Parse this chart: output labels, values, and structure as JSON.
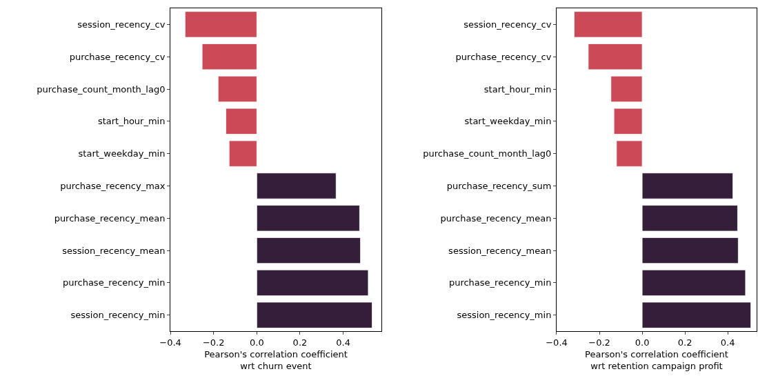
{
  "chart_data": [
    {
      "type": "bar",
      "orientation": "horizontal",
      "xlabel": "Pearson's correlation coefficient\nwrt churn event",
      "categories": [
        "session_recency_cv",
        "purchase_recency_cv",
        "purchase_count_month_lag0",
        "start_hour_min",
        "start_weekday_min",
        "purchase_recency_max",
        "purchase_recency_mean",
        "session_recency_mean",
        "purchase_recency_min",
        "session_recency_min"
      ],
      "values": [
        -0.332,
        -0.253,
        -0.179,
        -0.143,
        -0.128,
        0.367,
        0.476,
        0.48,
        0.516,
        0.534
      ],
      "colors": [
        "#cc4a57",
        "#cc4a57",
        "#cc4a57",
        "#cc4a57",
        "#cc4a57",
        "#341e3a",
        "#341e3a",
        "#341e3a",
        "#341e3a",
        "#341e3a"
      ],
      "xlim": [
        -0.4,
        0.577
      ],
      "xticks": [
        {
          "value": -0.4,
          "label": "−0.4"
        },
        {
          "value": -0.2,
          "label": "−0.2"
        },
        {
          "value": 0,
          "label": "0.0"
        },
        {
          "value": 0.2,
          "label": "0.2"
        },
        {
          "value": 0.4,
          "label": "0.4"
        }
      ]
    },
    {
      "type": "bar",
      "orientation": "horizontal",
      "xlabel": "Pearson's correlation coefficient\nwrt retention campaign profit",
      "categories": [
        "session_recency_cv",
        "purchase_recency_cv",
        "start_hour_min",
        "start_weekday_min",
        "purchase_count_month_lag0",
        "purchase_recency_sum",
        "purchase_recency_mean",
        "session_recency_mean",
        "purchase_recency_min",
        "session_recency_min"
      ],
      "values": [
        -0.318,
        -0.252,
        -0.146,
        -0.132,
        -0.12,
        0.424,
        0.446,
        0.449,
        0.483,
        0.508
      ],
      "colors": [
        "#cc4a57",
        "#cc4a57",
        "#cc4a57",
        "#cc4a57",
        "#cc4a57",
        "#341e3a",
        "#341e3a",
        "#341e3a",
        "#341e3a",
        "#341e3a"
      ],
      "xlim": [
        -0.4,
        0.535
      ],
      "xticks": [
        {
          "value": -0.4,
          "label": "−0.4"
        },
        {
          "value": -0.2,
          "label": "−0.2"
        },
        {
          "value": 0,
          "label": "0.0"
        },
        {
          "value": 0.2,
          "label": "0.2"
        },
        {
          "value": 0.4,
          "label": "0.4"
        }
      ]
    }
  ]
}
